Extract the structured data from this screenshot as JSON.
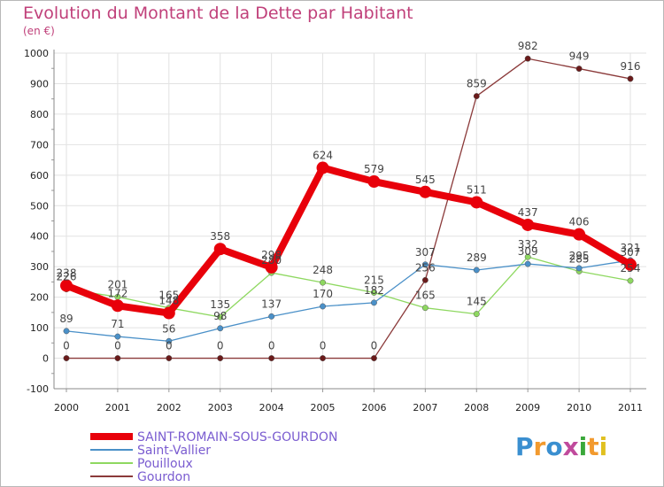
{
  "title": "Evolution du Montant de la Dette par Habitant",
  "unit": "(en €)",
  "logo": {
    "text": "Proxiti",
    "colors": [
      "#3a8fd0",
      "#f29a2e",
      "#3a8fd0",
      "#c04a9c",
      "#3aa83a",
      "#f29a2e",
      "#e0c020"
    ]
  },
  "chart_data": {
    "type": "line",
    "x": [
      "2000",
      "2001",
      "2002",
      "2003",
      "2004",
      "2005",
      "2006",
      "2007",
      "2008",
      "2009",
      "2010",
      "2011"
    ],
    "ylim": [
      -100,
      1000
    ],
    "yticks": [
      "-100",
      "0",
      "100",
      "200",
      "300",
      "400",
      "500",
      "600",
      "700",
      "800",
      "900",
      "1000"
    ],
    "legend_position": "bottom-left",
    "series": [
      {
        "name": "SAINT-ROMAIN-SOUS-GOURDON",
        "color": "#e8000a",
        "values": [
          238,
          172,
          148,
          358,
          298,
          624,
          579,
          545,
          511,
          437,
          406,
          307
        ]
      },
      {
        "name": "Saint-Vallier",
        "color": "#4a90c8",
        "values": [
          89,
          71,
          56,
          98,
          137,
          170,
          182,
          307,
          289,
          309,
          295,
          321
        ]
      },
      {
        "name": "Pouilloux",
        "color": "#8ed860",
        "values": [
          226,
          201,
          165,
          135,
          280,
          248,
          215,
          165,
          145,
          332,
          285,
          254
        ]
      },
      {
        "name": "Gourdon",
        "color": "#8b3a3a",
        "values": [
          0,
          0,
          0,
          0,
          0,
          0,
          0,
          256,
          859,
          982,
          949,
          916
        ]
      }
    ]
  }
}
